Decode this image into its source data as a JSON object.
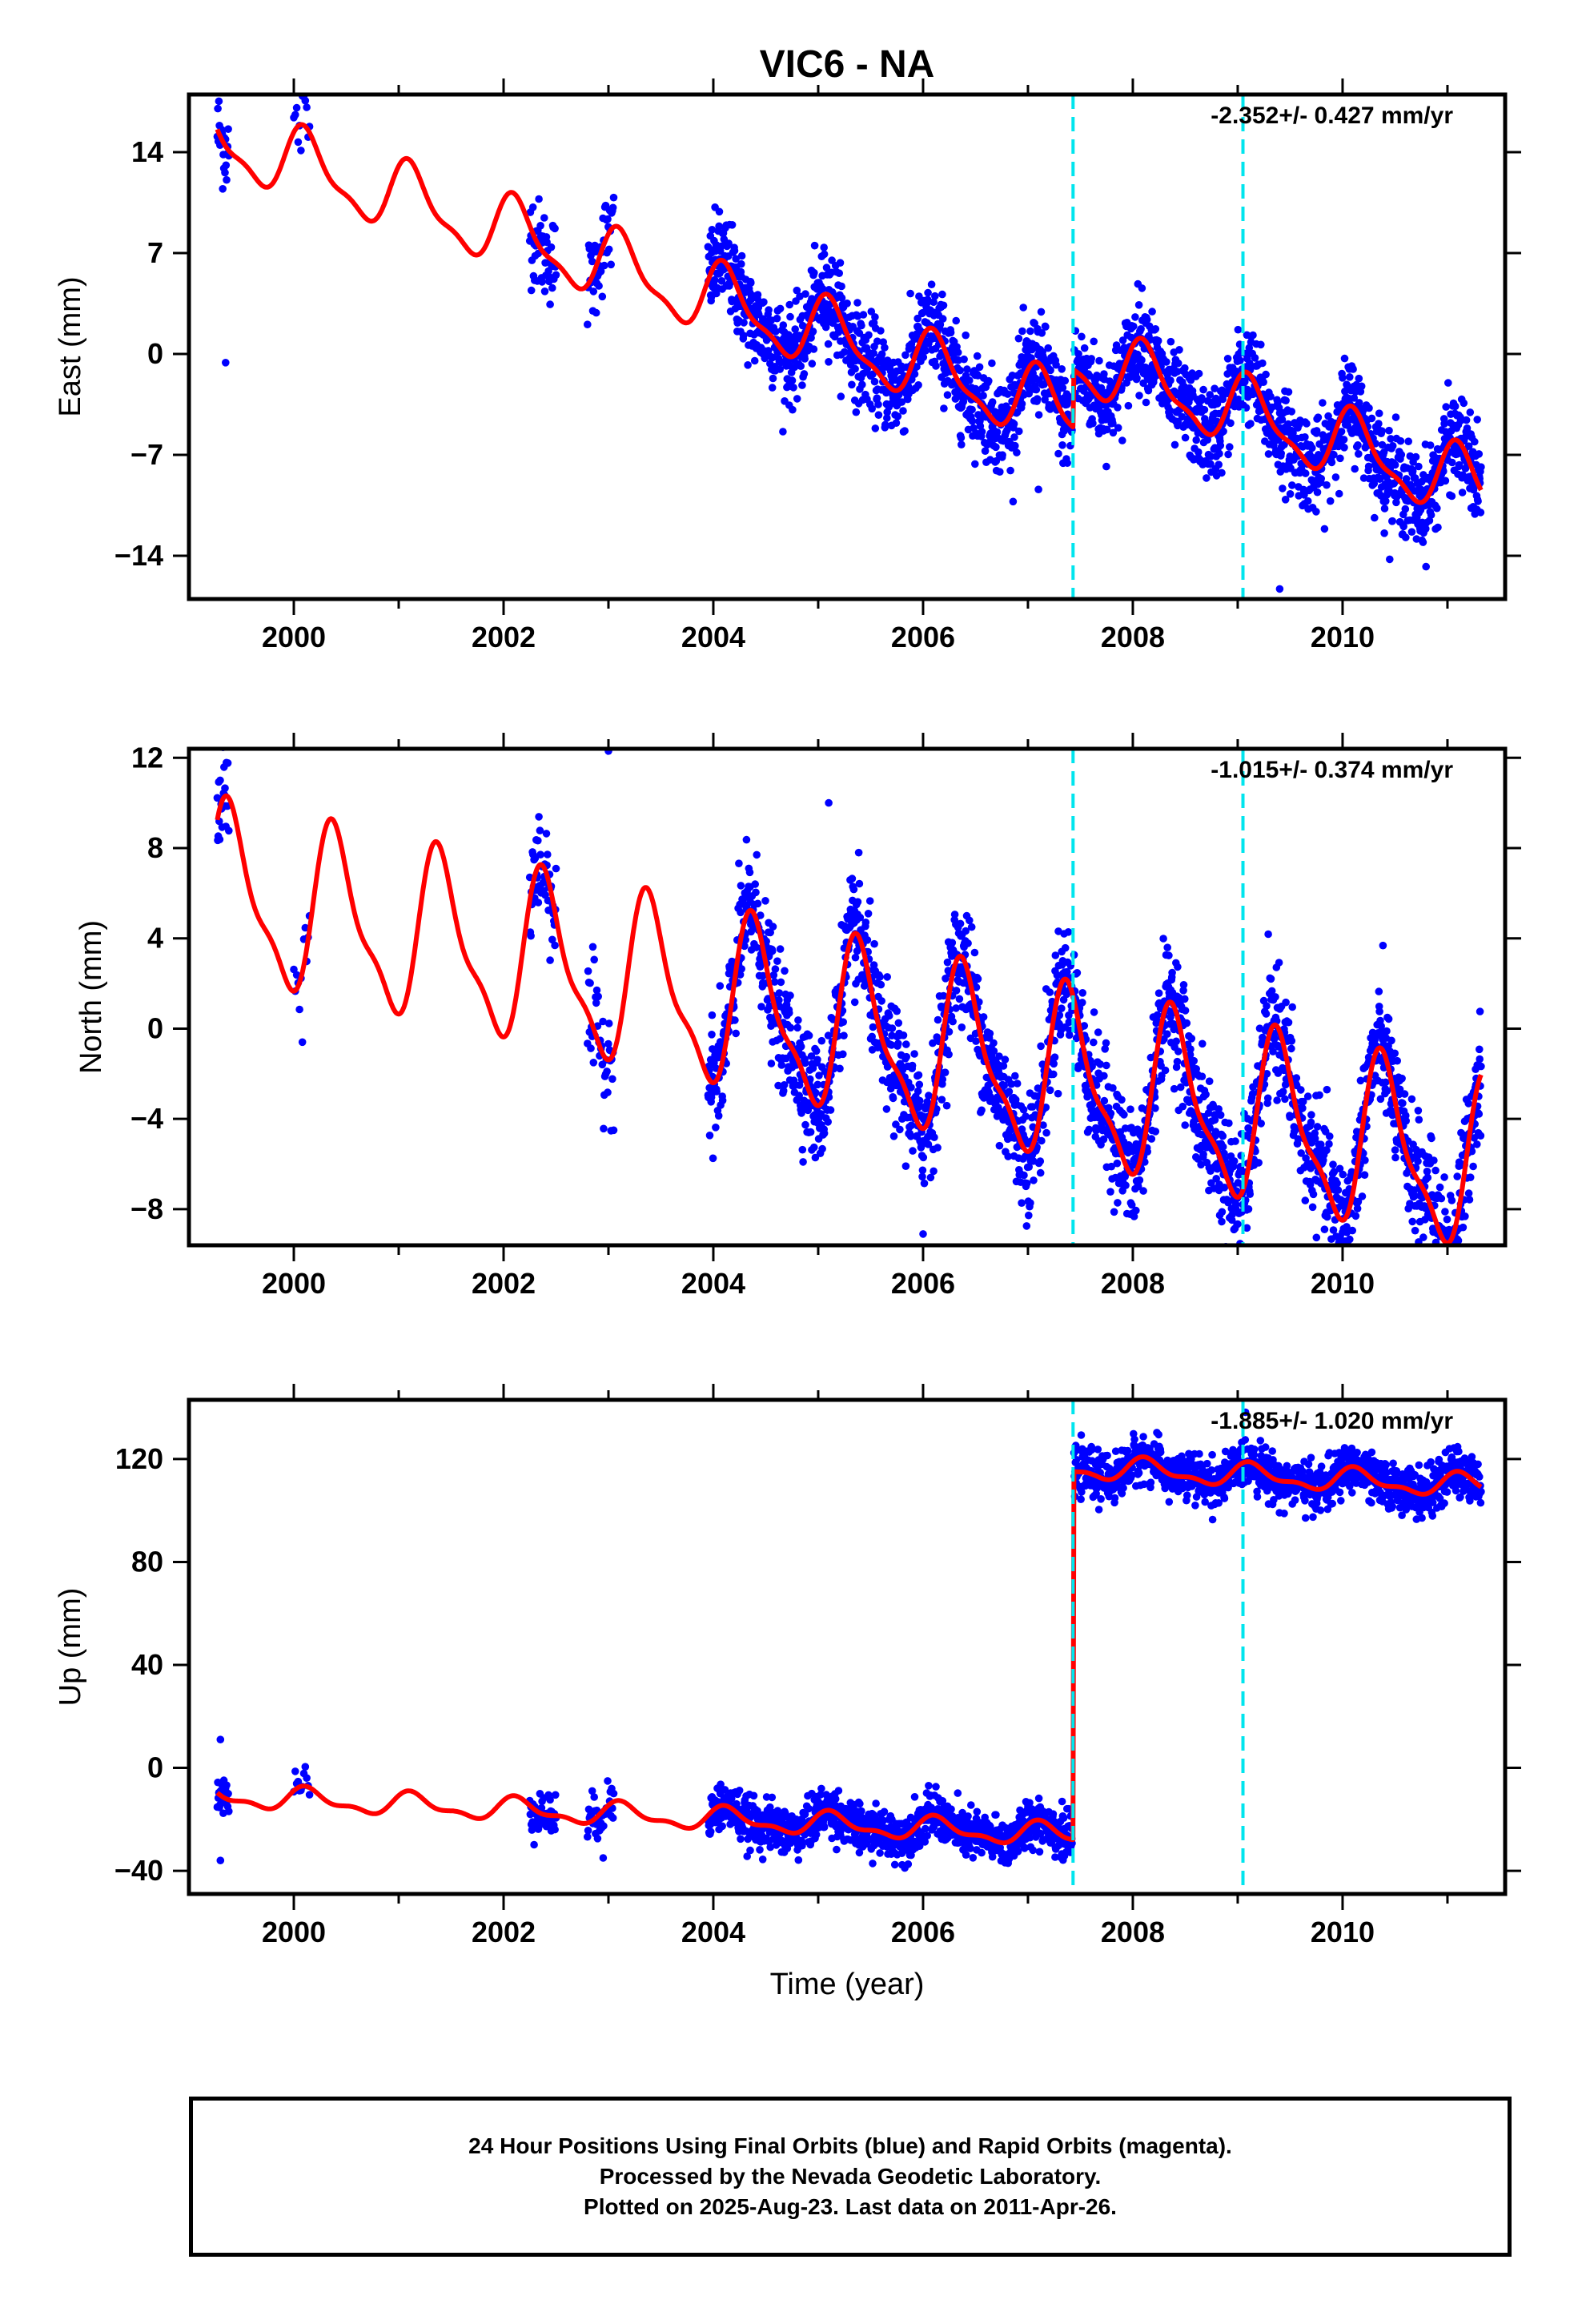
{
  "chart_data": {
    "type": "scatter",
    "title": "VIC6 - NA",
    "xlabel": "Time (year)",
    "xlim": [
      1999.0,
      2011.55
    ],
    "x_ticks": [
      2000,
      2002,
      2004,
      2006,
      2008,
      2010
    ],
    "x_tick_labels": [
      "2000",
      "2002",
      "2004",
      "2006",
      "2008",
      "2010"
    ],
    "vertical_lines": [
      2007.43,
      2009.05
    ],
    "vertical_line_color": "#00e5ee",
    "observation_color": "#0000ff",
    "model_color": "#ff0000",
    "panels": [
      {
        "name": "east",
        "ylabel": "East (mm)",
        "ylim": [
          -17,
          18
        ],
        "y_ticks": [
          14,
          7,
          0,
          -7,
          -14
        ],
        "y_tick_labels": [
          "14",
          "7",
          "0",
          "−7",
          "−14"
        ],
        "annotation": "-2.352+/- 0.427 mm/yr",
        "model": {
          "offset": 14.9,
          "rate": -2.352,
          "annual_cos": 1.6,
          "annual_sin": 1.6,
          "semiannual_cos": 0.6,
          "semiannual_sin": 0.5,
          "steps": [
            {
              "t": 2007.43,
              "jump": 4.0
            }
          ],
          "noise": 1.6
        },
        "data_segments": [
          [
            1999.27,
            1999.38,
            22
          ],
          [
            2000.0,
            2000.15,
            12
          ],
          [
            2002.25,
            2002.5,
            50
          ],
          [
            2002.8,
            2003.05,
            40
          ],
          [
            2003.95,
            2007.42,
            1100
          ],
          [
            2007.44,
            2011.32,
            1200
          ]
        ],
        "outliers": [
          [
            1999.35,
            -0.6
          ],
          [
            2007.1,
            -9.4
          ],
          [
            2009.4,
            -16.3
          ]
        ]
      },
      {
        "name": "north",
        "ylabel": "North (mm)",
        "ylim": [
          -9.6,
          12.4
        ],
        "y_ticks": [
          12,
          8,
          4,
          0,
          -4,
          -8
        ],
        "y_tick_labels": [
          "12",
          "8",
          "4",
          "0",
          "−4",
          "−8"
        ],
        "annotation": "-1.015+/- 0.374 mm/yr",
        "model": {
          "offset": 6.0,
          "rate": -1.015,
          "annual_cos": -2.9,
          "annual_sin": 2.0,
          "semiannual_cos": -0.7,
          "semiannual_sin": -0.9,
          "steps": [
            {
              "t": 2007.43,
              "jump": 0.0
            }
          ],
          "noise": 1.3
        },
        "data_segments": [
          [
            1999.27,
            1999.38,
            25
          ],
          [
            2000.0,
            2000.15,
            12
          ],
          [
            2002.25,
            2002.5,
            50
          ],
          [
            2002.8,
            2003.05,
            40
          ],
          [
            2003.95,
            2007.42,
            1100
          ],
          [
            2007.44,
            2011.32,
            1200
          ]
        ],
        "outliers": [
          [
            2003.0,
            12.3
          ],
          [
            2005.1,
            10.0
          ],
          [
            2006.0,
            -9.1
          ],
          [
            2010.85,
            -8.4
          ]
        ]
      },
      {
        "name": "up",
        "ylabel": "Up (mm)",
        "ylim": [
          -49,
          143
        ],
        "y_ticks": [
          120,
          80,
          40,
          0,
          -40
        ],
        "y_tick_labels": [
          "120",
          "80",
          "40",
          "0",
          "−40"
        ],
        "annotation": "-1.885+/- 1.020 mm/yr",
        "model": {
          "offset": -11.0,
          "rate": -1.885,
          "annual_cos": 2.5,
          "annual_sin": 3.0,
          "semiannual_cos": 1.0,
          "semiannual_sin": 1.5,
          "steps": [
            {
              "t": 2007.43,
              "jump": 143.0
            }
          ],
          "noise": 4.5
        },
        "data_segments": [
          [
            1999.27,
            1999.38,
            22
          ],
          [
            2000.0,
            2000.15,
            12
          ],
          [
            2002.25,
            2002.5,
            50
          ],
          [
            2002.8,
            2003.05,
            40
          ],
          [
            2003.95,
            2007.42,
            1100
          ],
          [
            2007.44,
            2011.32,
            1200
          ]
        ],
        "outliers": [
          [
            1999.3,
            -36.0
          ],
          [
            1999.3,
            11.0
          ],
          [
            2002.95,
            -35.0
          ]
        ]
      }
    ]
  },
  "footer": {
    "line1": "24 Hour Positions Using Final Orbits (blue) and Rapid Orbits (magenta).",
    "line2": "Processed by the Nevada Geodetic Laboratory.",
    "line3": "Plotted on 2025-Aug-23. Last data on 2011-Apr-26."
  }
}
